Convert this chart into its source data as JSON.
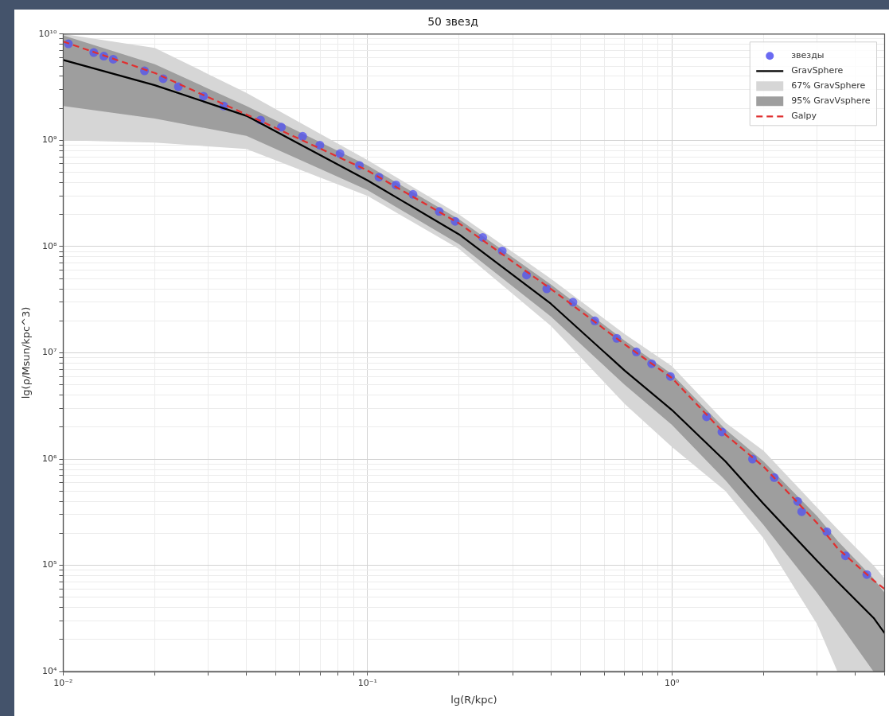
{
  "chart_data": {
    "type": "line",
    "title": "50 звезд",
    "xlabel": "lg(R/kpc)",
    "ylabel": "lg(ρ/Msun/kpc^3)",
    "log": "xy",
    "grid": true,
    "legend": "top right",
    "xlim": [
      0.01,
      5
    ],
    "ylim": [
      10000,
      10000000000
    ],
    "xticks": [
      {
        "value": 0.01,
        "label": "10⁻²"
      },
      {
        "value": 0.1,
        "label": "10⁻¹"
      },
      {
        "value": 1,
        "label": "10⁰"
      }
    ],
    "yticks": [
      {
        "value": 10000,
        "label": "10⁴"
      },
      {
        "value": 100000,
        "label": "10⁵"
      },
      {
        "value": 1000000,
        "label": "10⁶"
      },
      {
        "value": 10000000,
        "label": "10⁷"
      },
      {
        "value": 100000000,
        "label": "10⁸"
      },
      {
        "value": 1000000000,
        "label": "10⁹"
      },
      {
        "value": 10000000000,
        "label": "10¹⁰"
      }
    ],
    "series": [
      {
        "type": "scatter",
        "name": "звезды",
        "color": "#5050f0",
        "marker": "circle",
        "x": [
          0.0104,
          0.0126,
          0.0136,
          0.0146,
          0.0185,
          0.0213,
          0.0239,
          0.0289,
          0.0337,
          0.0445,
          0.0521,
          0.0612,
          0.0697,
          0.0812,
          0.094,
          0.109,
          0.124,
          0.141,
          0.172,
          0.194,
          0.239,
          0.277,
          0.333,
          0.388,
          0.473,
          0.558,
          0.659,
          0.764,
          0.858,
          0.989,
          1.3,
          1.46,
          1.84,
          2.17,
          2.59,
          2.67,
          3.23,
          3.72,
          4.37
        ],
        "values": [
          8100000000,
          6700000000,
          6200000000,
          5800000000,
          4500000000,
          3800000000,
          3200000000,
          2600000000,
          2100000000,
          1550000000,
          1330000000,
          1090000000,
          900000000,
          750000000,
          580000000,
          450000000,
          380000000,
          310000000,
          214000000,
          173000000,
          122000000,
          91000000,
          54000000,
          40000000,
          30000000,
          20000000,
          13700000,
          10200000,
          7900000,
          6000000,
          2500000,
          1800000,
          1000000,
          670000,
          400000,
          320000,
          207000,
          123000,
          82000
        ]
      },
      {
        "type": "line",
        "name": "GravSphere",
        "color": "#000000",
        "x": [
          0.01,
          0.02,
          0.04,
          0.1,
          0.2,
          0.4,
          0.7,
          1,
          1.5,
          2,
          3,
          3.5,
          4.6,
          5
        ],
        "values": [
          5700000000,
          3300000000,
          1700000000,
          420000000,
          130000000,
          29000000,
          6800000,
          2900000,
          950000,
          380000,
          110000,
          70000,
          32000,
          23000
        ]
      },
      {
        "type": "area",
        "name": "67% GravSphere",
        "color": "#d6d6d6",
        "x": [
          0.01,
          0.02,
          0.04,
          0.1,
          0.2,
          0.4,
          0.7,
          1,
          1.5,
          2,
          3,
          3.5,
          4.6,
          5
        ],
        "values": [
          null,
          null,
          null,
          null,
          null,
          null,
          null,
          null,
          null,
          null,
          null,
          null,
          null,
          null
        ],
        "lower": [
          1000000000,
          950000000,
          830000000,
          300000000,
          95000000,
          18000000,
          3300000,
          1300000,
          500000,
          180000,
          28000,
          10000,
          10000,
          10000
        ],
        "upper": [
          10000000000,
          7400000000,
          2800000000,
          650000000,
          200000000,
          50000000,
          15000000,
          7500000,
          2200000,
          1200000,
          350000,
          220000,
          100000,
          75000
        ]
      },
      {
        "type": "area",
        "name": "95% GravVsphere",
        "color": "#9e9e9e",
        "x": [
          0.01,
          0.02,
          0.04,
          0.1,
          0.2,
          0.4,
          0.7,
          1,
          1.5,
          2,
          3,
          3.5,
          4.6,
          5
        ],
        "values": [
          null,
          null,
          null,
          null,
          null,
          null,
          null,
          null,
          null,
          null,
          null,
          null,
          null,
          null
        ],
        "lower": [
          2100000000,
          1600000000,
          1100000000,
          340000000,
          105000000,
          22000000,
          5000000,
          2100000,
          630000,
          240000,
          55000,
          30000,
          10000,
          10000
        ],
        "upper": [
          9700000000,
          5200000000,
          2100000000,
          580000000,
          180000000,
          44000000,
          13000000,
          6300000,
          1900000,
          950000,
          290000,
          170000,
          75000,
          55000
        ]
      },
      {
        "type": "line",
        "name": "Galpy",
        "color": "#e03030",
        "line_style": "dashed",
        "x": [
          0.01,
          0.02,
          0.04,
          0.1,
          0.2,
          0.4,
          0.7,
          1,
          1.5,
          2,
          3,
          3.5,
          4.6,
          5
        ],
        "values": [
          8500000000,
          4300000000,
          1750000000,
          520000000,
          165000000,
          40000000,
          12000000,
          5800000,
          1700000,
          850000,
          250000,
          145000,
          72000,
          60000
        ]
      }
    ]
  }
}
